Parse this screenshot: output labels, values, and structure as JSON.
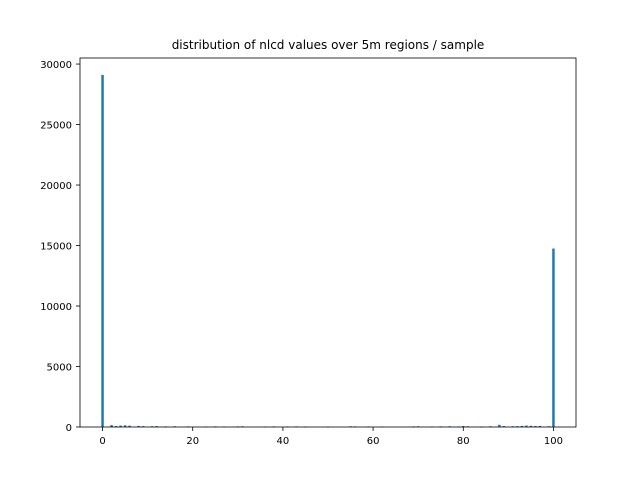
{
  "chart_data": {
    "type": "bar",
    "title": "distribution of nlcd values over 5m regions / sample",
    "xlabel": "",
    "ylabel": "",
    "xlim": [
      -5,
      105
    ],
    "ylim": [
      0,
      30500
    ],
    "xticks": [
      0,
      20,
      40,
      60,
      80,
      100
    ],
    "yticks": [
      0,
      5000,
      10000,
      15000,
      20000,
      25000,
      30000
    ],
    "grid": false,
    "bar_width": 0.55,
    "bar_color": "#1f77b4",
    "x": [
      0,
      2,
      3,
      4,
      5,
      6,
      8,
      9,
      11,
      12,
      14,
      16,
      19,
      23,
      25,
      27,
      30,
      31,
      36,
      38,
      41,
      43,
      45,
      50,
      55,
      56,
      59,
      62,
      69,
      70,
      73,
      75,
      77,
      79,
      80,
      81,
      84,
      86,
      88,
      89,
      91,
      92,
      93,
      94,
      95,
      96,
      97,
      99,
      100
    ],
    "values": [
      29100,
      160,
      80,
      120,
      140,
      110,
      90,
      70,
      60,
      80,
      50,
      60,
      50,
      40,
      50,
      40,
      50,
      60,
      40,
      50,
      40,
      50,
      40,
      40,
      60,
      50,
      40,
      40,
      50,
      60,
      40,
      50,
      60,
      40,
      80,
      60,
      40,
      60,
      180,
      80,
      60,
      70,
      90,
      120,
      100,
      80,
      90,
      60,
      14750
    ]
  }
}
